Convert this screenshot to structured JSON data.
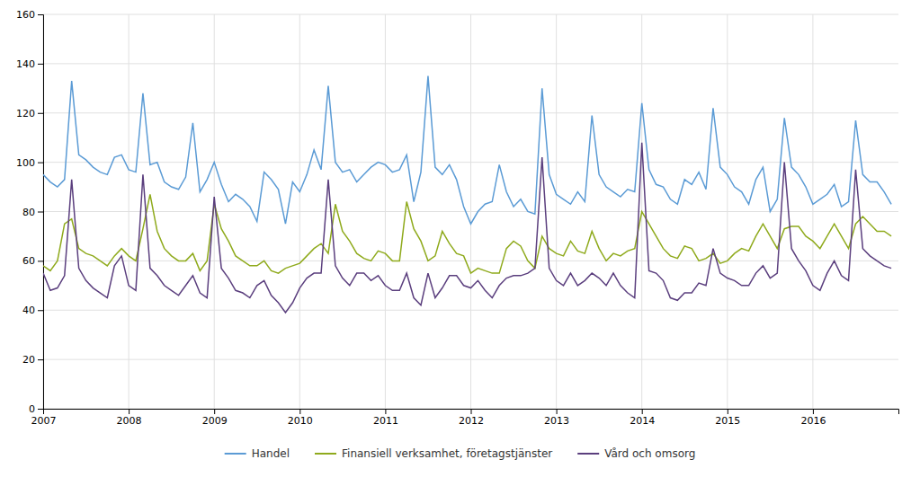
{
  "chart_data": {
    "type": "line",
    "x": [
      2007,
      2007.0833333333333,
      2007.1666666666667,
      2007.25,
      2007.3333333333333,
      2007.4166666666667,
      2007.5,
      2007.5833333333333,
      2007.6666666666667,
      2007.75,
      2007.8333333333333,
      2007.9166666666667,
      2008,
      2008.0833333333333,
      2008.1666666666667,
      2008.25,
      2008.3333333333333,
      2008.4166666666667,
      2008.5,
      2008.5833333333333,
      2008.6666666666667,
      2008.75,
      2008.8333333333333,
      2008.9166666666667,
      2009,
      2009.0833333333333,
      2009.1666666666667,
      2009.25,
      2009.3333333333333,
      2009.4166666666667,
      2009.5,
      2009.5833333333333,
      2009.6666666666667,
      2009.75,
      2009.8333333333333,
      2009.9166666666667,
      2010,
      2010.0833333333333,
      2010.1666666666667,
      2010.25,
      2010.3333333333333,
      2010.4166666666667,
      2010.5,
      2010.5833333333333,
      2010.6666666666667,
      2010.75,
      2010.8333333333333,
      2010.9166666666667,
      2011,
      2011.0833333333333,
      2011.1666666666667,
      2011.25,
      2011.3333333333333,
      2011.4166666666667,
      2011.5,
      2011.5833333333333,
      2011.6666666666667,
      2011.75,
      2011.8333333333333,
      2011.9166666666667,
      2012,
      2012.0833333333333,
      2012.1666666666667,
      2012.25,
      2012.3333333333333,
      2012.4166666666667,
      2012.5,
      2012.5833333333333,
      2012.6666666666667,
      2012.75,
      2012.8333333333333,
      2012.9166666666667,
      2013,
      2013.0833333333333,
      2013.1666666666667,
      2013.25,
      2013.3333333333333,
      2013.4166666666667,
      2013.5,
      2013.5833333333333,
      2013.6666666666667,
      2013.75,
      2013.8333333333333,
      2013.9166666666667,
      2014,
      2014.0833333333333,
      2014.1666666666667,
      2014.25,
      2014.3333333333333,
      2014.4166666666667,
      2014.5,
      2014.5833333333333,
      2014.6666666666667,
      2014.75,
      2014.8333333333333,
      2014.9166666666667,
      2015,
      2015.0833333333333,
      2015.1666666666667,
      2015.25,
      2015.3333333333333,
      2015.4166666666667,
      2015.5,
      2015.5833333333333,
      2015.6666666666667,
      2015.75,
      2015.8333333333333,
      2015.9166666666667,
      2016,
      2016.0833333333333,
      2016.1666666666667,
      2016.25,
      2016.3333333333333,
      2016.4166666666667,
      2016.5,
      2016.5833333333333,
      2016.6666666666667,
      2016.75,
      2016.8333333333333,
      2016.9166666666667
    ],
    "xlim": [
      2007,
      2017
    ],
    "xticks": [
      2007,
      2008,
      2009,
      2010,
      2011,
      2012,
      2013,
      2014,
      2015,
      2016
    ],
    "ylim": [
      0,
      160
    ],
    "yticks": [
      0,
      20,
      40,
      60,
      80,
      100,
      120,
      140,
      160
    ],
    "grid": true,
    "legend": "bottom",
    "series": [
      {
        "name": "Handel",
        "color": "#5b9bd5",
        "values": [
          95,
          92,
          90,
          93,
          133,
          103,
          101,
          98,
          96,
          95,
          102,
          103,
          97,
          96,
          128,
          99,
          100,
          92,
          90,
          89,
          94,
          116,
          88,
          93,
          100,
          91,
          84,
          87,
          85,
          82,
          76,
          96,
          93,
          89,
          75,
          92,
          88,
          95,
          105,
          97,
          131,
          100,
          96,
          97,
          92,
          95,
          98,
          100,
          99,
          96,
          97,
          103,
          84,
          96,
          135,
          98,
          95,
          99,
          93,
          82,
          75,
          80,
          83,
          84,
          99,
          88,
          82,
          85,
          80,
          79,
          130,
          95,
          87,
          85,
          83,
          88,
          84,
          119,
          95,
          90,
          88,
          86,
          89,
          88,
          124,
          97,
          91,
          90,
          85,
          83,
          93,
          91,
          96,
          89,
          122,
          98,
          95,
          90,
          88,
          83,
          93,
          98,
          80,
          85,
          118,
          98,
          95,
          90,
          83,
          85,
          87,
          91,
          82,
          84,
          117,
          95,
          92,
          92,
          88,
          83
        ]
      },
      {
        "name": "Finansiell verksamhet, företagstjänster",
        "color": "#8faa1c",
        "values": [
          58,
          56,
          60,
          75,
          77,
          65,
          63,
          62,
          60,
          58,
          62,
          65,
          62,
          60,
          73,
          87,
          72,
          65,
          62,
          60,
          60,
          63,
          56,
          60,
          83,
          73,
          68,
          62,
          60,
          58,
          58,
          60,
          56,
          55,
          57,
          58,
          59,
          62,
          65,
          67,
          63,
          83,
          72,
          68,
          63,
          61,
          60,
          64,
          63,
          60,
          60,
          84,
          73,
          68,
          60,
          62,
          72,
          67,
          63,
          62,
          55,
          57,
          56,
          55,
          55,
          65,
          68,
          66,
          60,
          57,
          70,
          65,
          63,
          62,
          68,
          64,
          63,
          72,
          65,
          60,
          63,
          62,
          64,
          65,
          80,
          75,
          70,
          65,
          62,
          61,
          66,
          65,
          60,
          61,
          63,
          59,
          60,
          63,
          65,
          64,
          70,
          75,
          70,
          65,
          73,
          74,
          74,
          70,
          68,
          65,
          70,
          75,
          70,
          65,
          75,
          78,
          75,
          72,
          72,
          70
        ]
      },
      {
        "name": "Vård och omsorg",
        "color": "#5b3f7e",
        "values": [
          55,
          48,
          49,
          54,
          93,
          57,
          52,
          49,
          47,
          45,
          58,
          62,
          50,
          48,
          95,
          57,
          54,
          50,
          48,
          46,
          50,
          54,
          47,
          45,
          86,
          57,
          53,
          48,
          47,
          45,
          50,
          52,
          46,
          43,
          39,
          43,
          49,
          53,
          55,
          55,
          93,
          58,
          53,
          50,
          55,
          55,
          52,
          54,
          50,
          48,
          48,
          55,
          45,
          42,
          55,
          45,
          49,
          54,
          54,
          50,
          49,
          52,
          48,
          45,
          50,
          53,
          54,
          54,
          55,
          57,
          102,
          57,
          52,
          50,
          55,
          50,
          52,
          55,
          53,
          50,
          55,
          50,
          47,
          45,
          108,
          56,
          55,
          52,
          45,
          44,
          47,
          47,
          51,
          50,
          65,
          55,
          53,
          52,
          50,
          50,
          55,
          58,
          53,
          55,
          100,
          65,
          60,
          56,
          50,
          48,
          55,
          60,
          54,
          52,
          97,
          65,
          62,
          60,
          58,
          57
        ]
      }
    ]
  }
}
